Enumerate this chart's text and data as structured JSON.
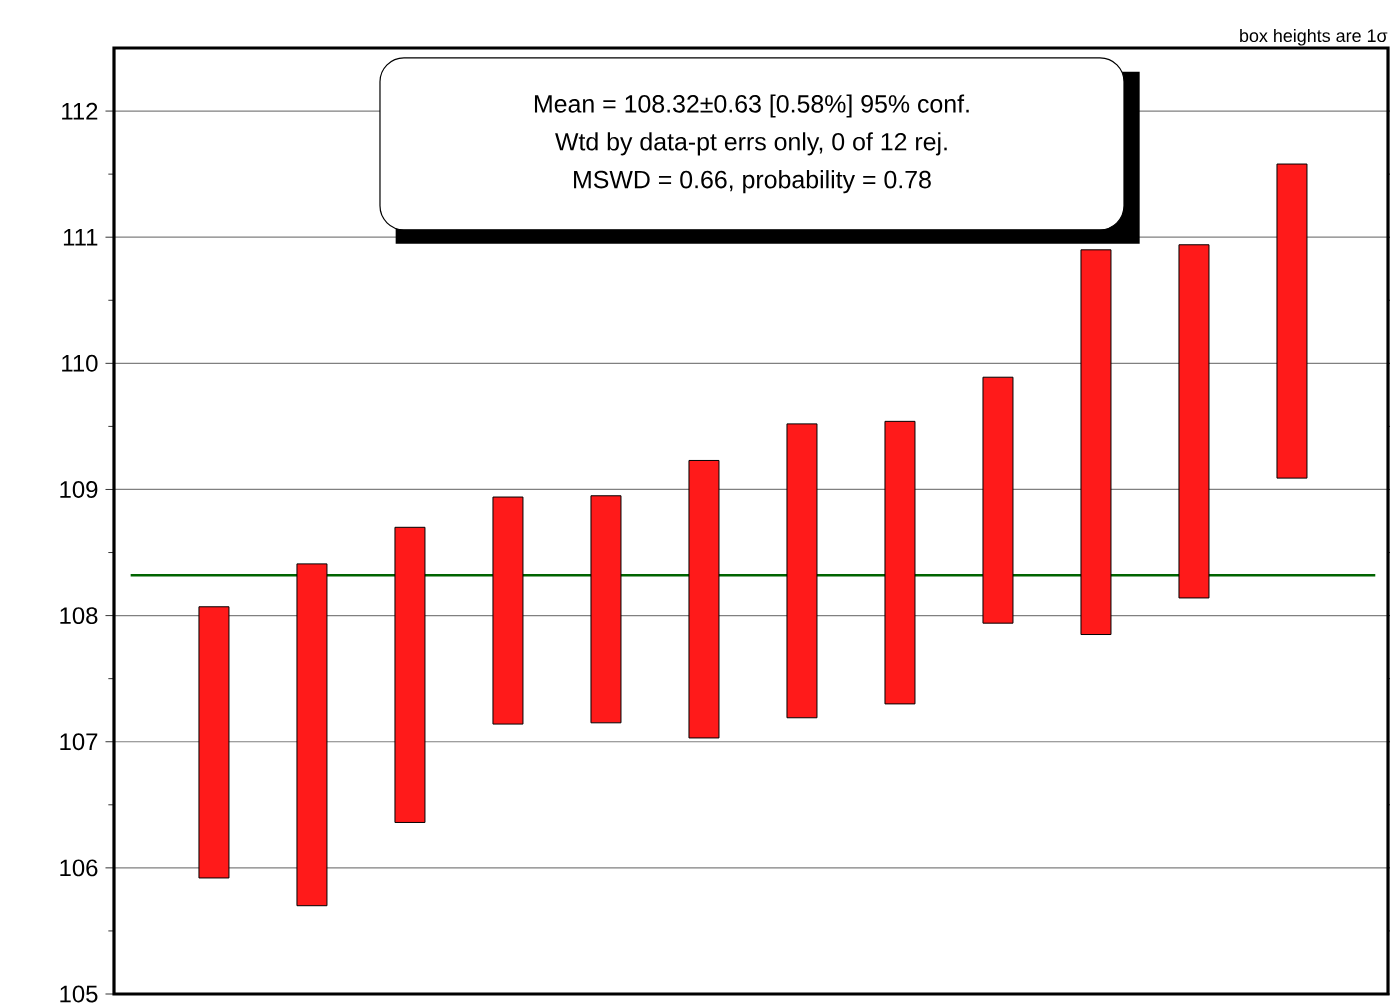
{
  "chart_data": {
    "type": "bar",
    "categories": [
      null,
      null,
      null,
      null,
      null,
      null,
      null,
      null,
      null,
      null,
      null,
      null
    ],
    "base": [
      105.92,
      105.7,
      106.36,
      107.14,
      107.15,
      107.03,
      107.19,
      107.3,
      107.94,
      107.85,
      108.14,
      109.09
    ],
    "values": [
      2.15,
      2.71,
      2.34,
      1.8,
      1.8,
      2.2,
      2.33,
      2.24,
      1.95,
      3.05,
      2.8,
      2.49
    ],
    "color": "#ff1a1a",
    "ylim": [
      105,
      112.5
    ],
    "yticks": [
      105,
      106,
      107,
      108,
      109,
      110,
      111,
      112
    ],
    "grid": "y",
    "ref_lines": [
      {
        "axis": "y",
        "value": 108.32,
        "color": "#006400"
      }
    ],
    "annotations": [
      "Mean = 108.32±0.63  [0.58%]  95% conf.",
      "Wtd by data-pt errs only, 0 of 12 rej.",
      "MSWD = 0.66, probability = 0.78",
      "box heights are 1σ"
    ]
  }
}
